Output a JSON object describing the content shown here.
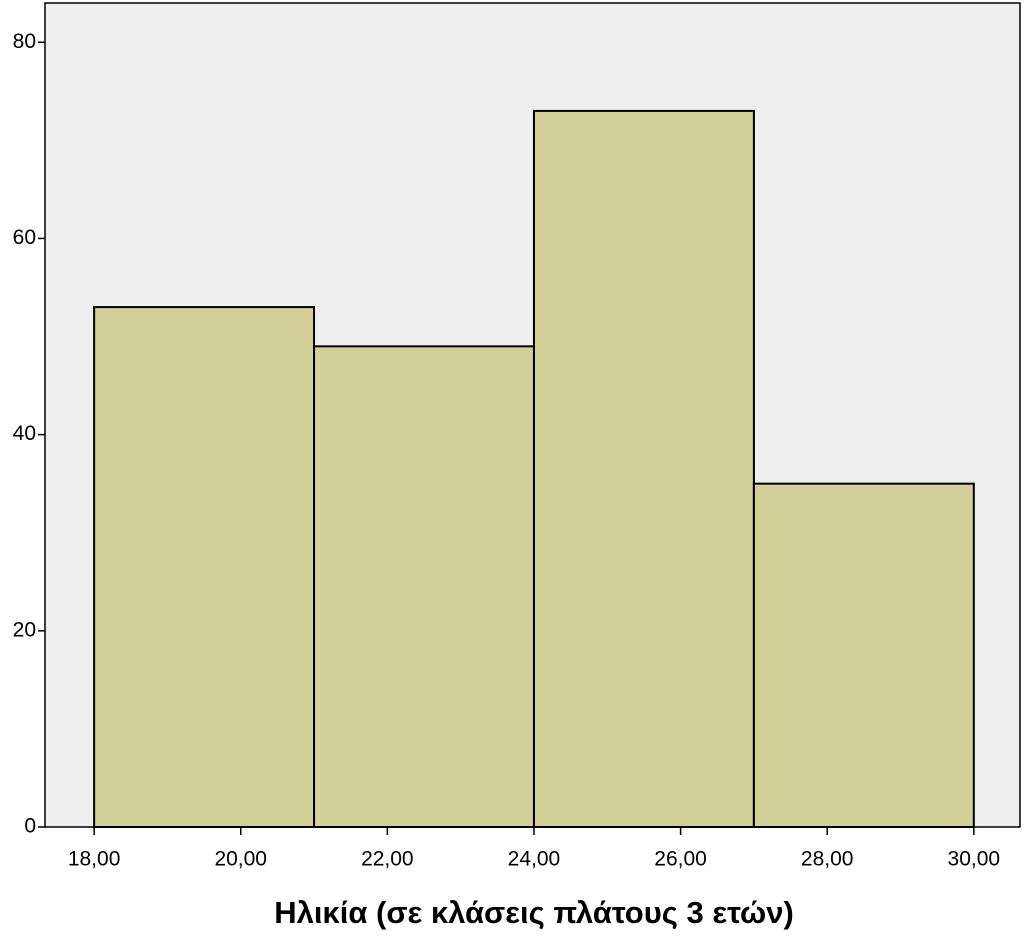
{
  "chart_data": {
    "type": "histogram",
    "x_label": "Ηλικία (σε κλάσεις πλάτους 3 ετών)",
    "bins": [
      18,
      21,
      24,
      27,
      30
    ],
    "values": [
      53,
      49,
      73,
      35
    ],
    "color": "#d3cf98",
    "xlim": [
      17.33,
      30.63
    ],
    "ylim": [
      0,
      84
    ],
    "xticks": [
      {
        "value": 18,
        "label": "18,00"
      },
      {
        "value": 20,
        "label": "20,00"
      },
      {
        "value": 22,
        "label": "22,00"
      },
      {
        "value": 24,
        "label": "24,00"
      },
      {
        "value": 26,
        "label": "26,00"
      },
      {
        "value": 28,
        "label": "28,00"
      },
      {
        "value": 30,
        "label": "30,00"
      }
    ],
    "yticks": [
      0,
      20,
      40,
      60,
      80
    ]
  }
}
